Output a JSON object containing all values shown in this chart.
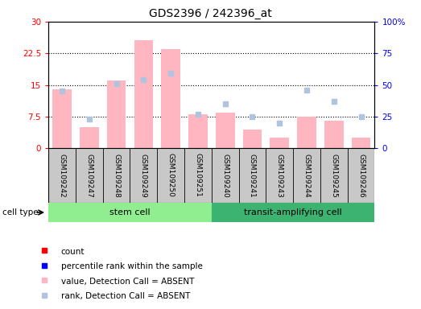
{
  "title": "GDS2396 / 242396_at",
  "samples": [
    "GSM109242",
    "GSM109247",
    "GSM109248",
    "GSM109249",
    "GSM109250",
    "GSM109251",
    "GSM109240",
    "GSM109241",
    "GSM109243",
    "GSM109244",
    "GSM109245",
    "GSM109246"
  ],
  "absent_value": [
    14.0,
    5.0,
    16.0,
    25.5,
    23.5,
    8.0,
    8.5,
    4.5,
    2.5,
    7.5,
    6.5,
    2.5
  ],
  "absent_rank": [
    45,
    23,
    51,
    54,
    59,
    27,
    35,
    25,
    20,
    46,
    37,
    25
  ],
  "ylim_left": [
    0,
    30
  ],
  "ylim_right": [
    0,
    100
  ],
  "yticks_left": [
    0,
    7.5,
    15,
    22.5,
    30
  ],
  "yticks_right": [
    0,
    25,
    50,
    75,
    100
  ],
  "ytick_labels_left": [
    "0",
    "7.5",
    "15",
    "22.5",
    "30"
  ],
  "ytick_labels_right": [
    "0",
    "25",
    "50",
    "75",
    "100%"
  ],
  "bar_color_absent": "#FFB6C1",
  "scatter_color_absent_rank": "#B0C4DE",
  "scatter_color_present_count": "#FF0000",
  "scatter_color_present_rank": "#0000FF",
  "stem_cell_color": "#90EE90",
  "transit_cell_color": "#3CB371",
  "label_bg_color": "#C8C8C8",
  "plot_bg_color": "#FFFFFF",
  "n_stem": 6,
  "n_transit": 6
}
